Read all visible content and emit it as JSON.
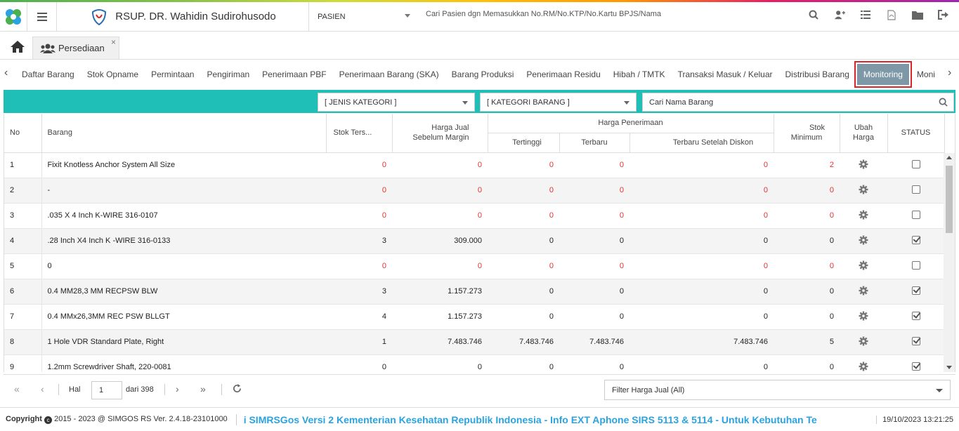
{
  "header": {
    "hospital_name": "RSUP. DR. Wahidin Sudirohusodo",
    "patient_selector": "PASIEN",
    "search_placeholder": "Cari Pasien dgn Memasukkan No.RM/No.KTP/No.Kartu BPJS/Nama",
    "icons": [
      "search-icon",
      "add-user-icon",
      "list-icon",
      "pdf-icon",
      "folder-icon",
      "logout-icon"
    ]
  },
  "tabs": {
    "active": "Persediaan",
    "close": "×"
  },
  "menu": {
    "items": [
      "Daftar Barang",
      "Stok Opname",
      "Permintaan",
      "Pengiriman",
      "Penerimaan PBF",
      "Penerimaan Barang (SKA)",
      "Barang Produksi",
      "Penerimaan Residu",
      "Hibah / TMTK",
      "Transaksi Masuk / Keluar",
      "Distribusi Barang",
      "Monitoring",
      "Moni"
    ],
    "active_index": 11
  },
  "filters": {
    "jenis_kategori": "[ JENIS KATEGORI ]",
    "kategori_barang": "[ KATEGORI BARANG ]",
    "search_placeholder": "Cari Nama Barang"
  },
  "table": {
    "headers": {
      "no": "No",
      "barang": "Barang",
      "stok": "Stok Ters...",
      "harga_jual_1": "Harga Jual",
      "harga_jual_2": "Sebelum Margin",
      "harga_penerimaan": "Harga Penerimaan",
      "tertinggi": "Tertinggi",
      "terbaru": "Terbaru",
      "terbaru_diskon": "Terbaru Setelah Diskon",
      "stok_min_1": "Stok",
      "stok_min_2": "Minimum",
      "ubah_1": "Ubah",
      "ubah_2": "Harga",
      "status": "STATUS"
    },
    "rows": [
      {
        "no": "1",
        "barang": "Fixit Knotless Anchor System All Size",
        "stok": "0",
        "harga_jual": "0",
        "tertinggi": "0",
        "terbaru": "0",
        "terbaru_diskon": "0",
        "stok_min": "2",
        "red": true,
        "checked": false
      },
      {
        "no": "2",
        "barang": "-",
        "stok": "0",
        "harga_jual": "0",
        "tertinggi": "0",
        "terbaru": "0",
        "terbaru_diskon": "0",
        "stok_min": "0",
        "red": true,
        "checked": false
      },
      {
        "no": "3",
        "barang": ".035 X 4 Inch K-WIRE 316-0107",
        "stok": "0",
        "harga_jual": "0",
        "tertinggi": "0",
        "terbaru": "0",
        "terbaru_diskon": "0",
        "stok_min": "0",
        "red": true,
        "checked": false
      },
      {
        "no": "4",
        "barang": ".28 Inch X4 Inch K -WIRE 316-0133",
        "stok": "3",
        "harga_jual": "309.000",
        "tertinggi": "0",
        "terbaru": "0",
        "terbaru_diskon": "0",
        "stok_min": "0",
        "red": false,
        "checked": true
      },
      {
        "no": "5",
        "barang": "0",
        "stok": "0",
        "harga_jual": "0",
        "tertinggi": "0",
        "terbaru": "0",
        "terbaru_diskon": "0",
        "stok_min": "0",
        "red": true,
        "checked": false
      },
      {
        "no": "6",
        "barang": "0.4 MM28,3 MM RECPSW BLW",
        "stok": "3",
        "harga_jual": "1.157.273",
        "tertinggi": "0",
        "terbaru": "0",
        "terbaru_diskon": "0",
        "stok_min": "0",
        "red": false,
        "checked": true
      },
      {
        "no": "7",
        "barang": "0.4 MMx26,3MM REC PSW BLLGT",
        "stok": "4",
        "harga_jual": "1.157.273",
        "tertinggi": "0",
        "terbaru": "0",
        "terbaru_diskon": "0",
        "stok_min": "0",
        "red": false,
        "checked": true
      },
      {
        "no": "8",
        "barang": "1 Hole VDR Standard Plate, Right",
        "stok": "1",
        "harga_jual": "7.483.746",
        "tertinggi": "7.483.746",
        "terbaru": "7.483.746",
        "terbaru_diskon": "7.483.746",
        "stok_min": "5",
        "red": false,
        "checked": true
      },
      {
        "no": "9",
        "barang": "1.2mm Screwdriver Shaft, 220-0081",
        "stok": "0",
        "harga_jual": "0",
        "tertinggi": "0",
        "terbaru": "0",
        "terbaru_diskon": "0",
        "stok_min": "0",
        "red": false,
        "checked": true
      }
    ]
  },
  "pager": {
    "hal_label": "Hal",
    "page": "1",
    "of_label": "dari 398",
    "filter": "Filter Harga Jual (All)"
  },
  "footer": {
    "copyright": "Copyright",
    "version": "2015 - 2023 @ SIMGOS RS Ver. 2.4.18-23101000",
    "marquee": "i SIMRSGos Versi 2 Kementerian Kesehatan Republik Indonesia - Info EXT Aphone SIRS 5113 & 5114 - Untuk Kebutuhan Te",
    "datetime": "19/10/2023 13:21:25"
  },
  "colors": {
    "teal": "#1fbfb8",
    "active_tab": "#7f98a8",
    "highlight": "#d9262a",
    "red_value": "#e03030",
    "marquee": "#2aa3e0"
  }
}
